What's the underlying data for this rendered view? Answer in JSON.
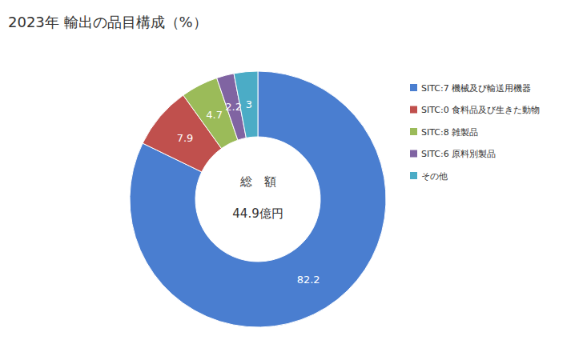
{
  "chart_data": {
    "type": "pie",
    "title": "2023年 輸出の品目構成（%）",
    "categories": [
      "SITC:7 機械及び輸送用機器",
      "SITC:0 食料品及び生きた動物",
      "SITC:8 雑製品",
      "SITC:6 原料別製品",
      "その他"
    ],
    "values": [
      82.2,
      7.9,
      4.7,
      2.2,
      3.0
    ],
    "colors": [
      "#4a7ed0",
      "#c0504d",
      "#9bbb59",
      "#8064a2",
      "#4bacc6"
    ],
    "annotations": [
      "総　額",
      "44.9億円"
    ],
    "data_labels": true,
    "legend": "right"
  }
}
